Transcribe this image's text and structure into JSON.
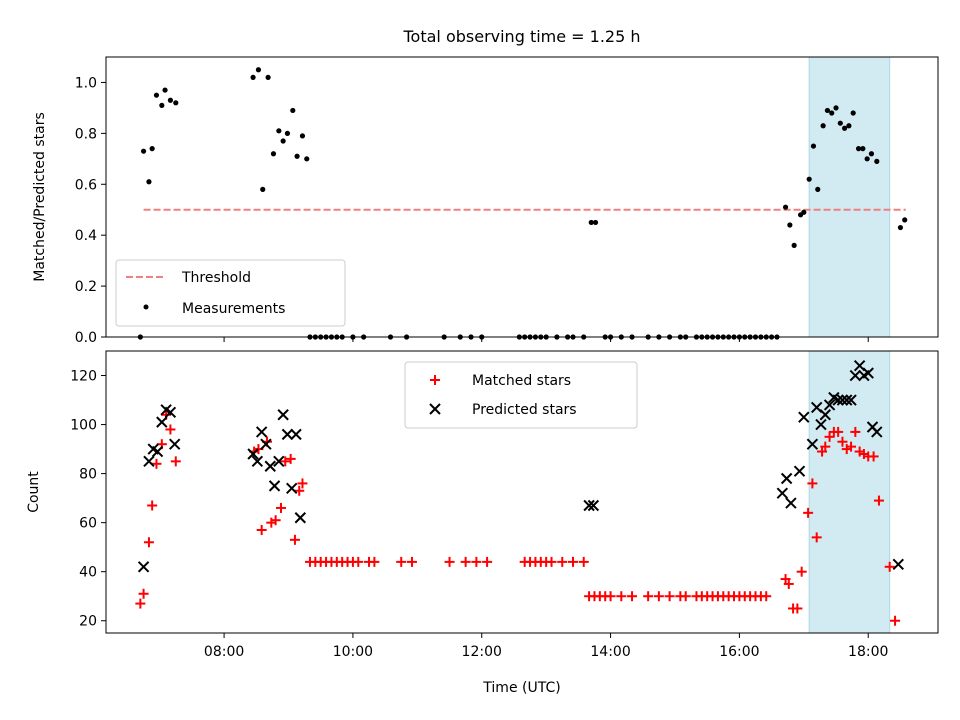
{
  "chart_data": [
    {
      "type": "scatter",
      "title": "Total observing time = 1.25 h",
      "ylabel": "Matched/Predicted stars",
      "xlim": [
        "06:10",
        "19:05"
      ],
      "ylim": [
        0,
        1.1
      ],
      "yticks": [
        "0.0",
        "0.2",
        "0.4",
        "0.6",
        "0.8",
        "1.0"
      ],
      "highlight_span": {
        "from": "17:05",
        "to": "18:20",
        "color": "#add8e6"
      },
      "legend": {
        "position": "lower-left"
      },
      "series": [
        {
          "name": "Threshold",
          "style": "dashed-line",
          "color": "#f08080",
          "points": [
            [
              "06:45",
              0.5
            ],
            [
              "18:35",
              0.5
            ]
          ]
        },
        {
          "name": "Measurements",
          "style": "dots",
          "color": "#000000",
          "points": [
            [
              "06:42",
              0.0
            ],
            [
              "06:45",
              0.73
            ],
            [
              "06:50",
              0.61
            ],
            [
              "06:53",
              0.74
            ],
            [
              "06:57",
              0.95
            ],
            [
              "07:02",
              0.91
            ],
            [
              "07:05",
              0.97
            ],
            [
              "07:10",
              0.93
            ],
            [
              "07:15",
              0.92
            ],
            [
              "08:27",
              1.02
            ],
            [
              "08:32",
              1.05
            ],
            [
              "08:36",
              0.58
            ],
            [
              "08:41",
              1.02
            ],
            [
              "08:46",
              0.72
            ],
            [
              "08:51",
              0.81
            ],
            [
              "08:55",
              0.77
            ],
            [
              "08:59",
              0.8
            ],
            [
              "09:04",
              0.89
            ],
            [
              "09:08",
              0.71
            ],
            [
              "09:13",
              0.79
            ],
            [
              "09:17",
              0.7
            ],
            [
              "09:20",
              0.0
            ],
            [
              "09:25",
              0.0
            ],
            [
              "09:30",
              0.0
            ],
            [
              "09:35",
              0.0
            ],
            [
              "09:40",
              0.0
            ],
            [
              "09:45",
              0.0
            ],
            [
              "09:50",
              0.0
            ],
            [
              "10:00",
              0.0
            ],
            [
              "10:10",
              0.0
            ],
            [
              "10:35",
              0.0
            ],
            [
              "10:50",
              0.0
            ],
            [
              "11:25",
              0.0
            ],
            [
              "11:40",
              0.0
            ],
            [
              "11:50",
              0.0
            ],
            [
              "12:00",
              0.0
            ],
            [
              "12:35",
              0.0
            ],
            [
              "12:40",
              0.0
            ],
            [
              "12:45",
              0.0
            ],
            [
              "12:50",
              0.0
            ],
            [
              "12:55",
              0.0
            ],
            [
              "13:00",
              0.0
            ],
            [
              "13:10",
              0.0
            ],
            [
              "13:20",
              0.0
            ],
            [
              "13:25",
              0.0
            ],
            [
              "13:35",
              0.0
            ],
            [
              "13:42",
              0.45
            ],
            [
              "13:46",
              0.45
            ],
            [
              "13:55",
              0.0
            ],
            [
              "14:00",
              0.0
            ],
            [
              "14:10",
              0.0
            ],
            [
              "14:20",
              0.0
            ],
            [
              "14:35",
              0.0
            ],
            [
              "14:45",
              0.0
            ],
            [
              "14:55",
              0.0
            ],
            [
              "15:05",
              0.0
            ],
            [
              "15:10",
              0.0
            ],
            [
              "15:20",
              0.0
            ],
            [
              "15:25",
              0.0
            ],
            [
              "15:30",
              0.0
            ],
            [
              "15:35",
              0.0
            ],
            [
              "15:40",
              0.0
            ],
            [
              "15:45",
              0.0
            ],
            [
              "15:50",
              0.0
            ],
            [
              "15:55",
              0.0
            ],
            [
              "16:00",
              0.0
            ],
            [
              "16:05",
              0.0
            ],
            [
              "16:10",
              0.0
            ],
            [
              "16:15",
              0.0
            ],
            [
              "16:20",
              0.0
            ],
            [
              "16:25",
              0.0
            ],
            [
              "16:30",
              0.0
            ],
            [
              "16:35",
              0.0
            ],
            [
              "16:43",
              0.51
            ],
            [
              "16:47",
              0.44
            ],
            [
              "16:51",
              0.36
            ],
            [
              "16:57",
              0.48
            ],
            [
              "17:00",
              0.49
            ],
            [
              "17:05",
              0.62
            ],
            [
              "17:09",
              0.75
            ],
            [
              "17:13",
              0.58
            ],
            [
              "17:18",
              0.83
            ],
            [
              "17:22",
              0.89
            ],
            [
              "17:26",
              0.88
            ],
            [
              "17:30",
              0.9
            ],
            [
              "17:34",
              0.84
            ],
            [
              "17:38",
              0.82
            ],
            [
              "17:42",
              0.83
            ],
            [
              "17:46",
              0.88
            ],
            [
              "17:51",
              0.74
            ],
            [
              "17:55",
              0.74
            ],
            [
              "17:59",
              0.7
            ],
            [
              "18:03",
              0.72
            ],
            [
              "18:08",
              0.69
            ],
            [
              "18:30",
              0.43
            ],
            [
              "18:34",
              0.46
            ]
          ]
        }
      ]
    },
    {
      "type": "scatter",
      "xlabel": "Time (UTC)",
      "ylabel": "Count",
      "xlim": [
        "06:10",
        "19:05"
      ],
      "ylim": [
        15,
        130
      ],
      "yticks": [
        "20",
        "40",
        "60",
        "80",
        "100",
        "120"
      ],
      "xticks": [
        "08:00",
        "10:00",
        "12:00",
        "14:00",
        "16:00",
        "18:00"
      ],
      "highlight_span": {
        "from": "17:05",
        "to": "18:20",
        "color": "#add8e6"
      },
      "legend": {
        "position": "upper-center"
      },
      "series": [
        {
          "name": "Matched stars",
          "style": "plus",
          "color": "#ff0000",
          "points": [
            [
              "06:42",
              27
            ],
            [
              "06:45",
              31
            ],
            [
              "06:50",
              52
            ],
            [
              "06:53",
              67
            ],
            [
              "06:57",
              84
            ],
            [
              "07:02",
              92
            ],
            [
              "07:06",
              104
            ],
            [
              "07:10",
              98
            ],
            [
              "07:15",
              85
            ],
            [
              "08:28",
              89
            ],
            [
              "08:32",
              90
            ],
            [
              "08:35",
              57
            ],
            [
              "08:40",
              93
            ],
            [
              "08:44",
              60
            ],
            [
              "08:48",
              61
            ],
            [
              "08:53",
              66
            ],
            [
              "08:57",
              85
            ],
            [
              "09:02",
              86
            ],
            [
              "09:06",
              53
            ],
            [
              "09:10",
              73
            ],
            [
              "09:13",
              76
            ],
            [
              "09:20",
              44
            ],
            [
              "09:25",
              44
            ],
            [
              "09:30",
              44
            ],
            [
              "09:35",
              44
            ],
            [
              "09:40",
              44
            ],
            [
              "09:45",
              44
            ],
            [
              "09:50",
              44
            ],
            [
              "09:55",
              44
            ],
            [
              "10:00",
              44
            ],
            [
              "10:05",
              44
            ],
            [
              "10:15",
              44
            ],
            [
              "10:20",
              44
            ],
            [
              "10:45",
              44
            ],
            [
              "10:55",
              44
            ],
            [
              "11:30",
              44
            ],
            [
              "11:45",
              44
            ],
            [
              "11:55",
              44
            ],
            [
              "12:05",
              44
            ],
            [
              "12:40",
              44
            ],
            [
              "12:45",
              44
            ],
            [
              "12:50",
              44
            ],
            [
              "12:55",
              44
            ],
            [
              "13:00",
              44
            ],
            [
              "13:05",
              44
            ],
            [
              "13:15",
              44
            ],
            [
              "13:25",
              44
            ],
            [
              "13:35",
              44
            ],
            [
              "13:40",
              30
            ],
            [
              "13:45",
              30
            ],
            [
              "13:50",
              30
            ],
            [
              "13:55",
              30
            ],
            [
              "14:00",
              30
            ],
            [
              "14:10",
              30
            ],
            [
              "14:20",
              30
            ],
            [
              "14:35",
              30
            ],
            [
              "14:45",
              30
            ],
            [
              "14:55",
              30
            ],
            [
              "15:05",
              30
            ],
            [
              "15:10",
              30
            ],
            [
              "15:20",
              30
            ],
            [
              "15:25",
              30
            ],
            [
              "15:30",
              30
            ],
            [
              "15:35",
              30
            ],
            [
              "15:40",
              30
            ],
            [
              "15:45",
              30
            ],
            [
              "15:50",
              30
            ],
            [
              "15:55",
              30
            ],
            [
              "16:00",
              30
            ],
            [
              "16:05",
              30
            ],
            [
              "16:10",
              30
            ],
            [
              "16:15",
              30
            ],
            [
              "16:20",
              30
            ],
            [
              "16:25",
              30
            ],
            [
              "16:43",
              37
            ],
            [
              "16:46",
              35
            ],
            [
              "16:50",
              25
            ],
            [
              "16:54",
              25
            ],
            [
              "16:58",
              40
            ],
            [
              "17:04",
              64
            ],
            [
              "17:08",
              76
            ],
            [
              "17:12",
              54
            ],
            [
              "17:17",
              89
            ],
            [
              "17:20",
              91
            ],
            [
              "17:24",
              95
            ],
            [
              "17:28",
              97
            ],
            [
              "17:32",
              97
            ],
            [
              "17:36",
              93
            ],
            [
              "17:40",
              90
            ],
            [
              "17:44",
              91
            ],
            [
              "17:48",
              97
            ],
            [
              "17:52",
              89
            ],
            [
              "17:56",
              88
            ],
            [
              "18:00",
              87
            ],
            [
              "18:05",
              87
            ],
            [
              "18:10",
              69
            ],
            [
              "18:20",
              42
            ],
            [
              "18:25",
              20
            ]
          ]
        },
        {
          "name": "Predicted stars",
          "style": "x",
          "color": "#000000",
          "points": [
            [
              "06:45",
              42
            ],
            [
              "06:50",
              85
            ],
            [
              "06:54",
              90
            ],
            [
              "06:58",
              89
            ],
            [
              "07:02",
              101
            ],
            [
              "07:06",
              106
            ],
            [
              "07:10",
              105
            ],
            [
              "07:14",
              92
            ],
            [
              "08:27",
              88
            ],
            [
              "08:31",
              85
            ],
            [
              "08:35",
              97
            ],
            [
              "08:39",
              92
            ],
            [
              "08:43",
              83
            ],
            [
              "08:47",
              75
            ],
            [
              "08:51",
              85
            ],
            [
              "08:55",
              104
            ],
            [
              "08:59",
              96
            ],
            [
              "09:03",
              74
            ],
            [
              "09:07",
              96
            ],
            [
              "09:11",
              62
            ],
            [
              "13:40",
              67
            ],
            [
              "13:44",
              67
            ],
            [
              "16:40",
              72
            ],
            [
              "16:44",
              78
            ],
            [
              "16:48",
              68
            ],
            [
              "16:56",
              81
            ],
            [
              "17:00",
              103
            ],
            [
              "17:08",
              92
            ],
            [
              "17:12",
              107
            ],
            [
              "17:16",
              100
            ],
            [
              "17:20",
              104
            ],
            [
              "17:24",
              108
            ],
            [
              "17:28",
              111
            ],
            [
              "17:32",
              110
            ],
            [
              "17:36",
              110
            ],
            [
              "17:40",
              110
            ],
            [
              "17:44",
              110
            ],
            [
              "17:48",
              120
            ],
            [
              "17:52",
              124
            ],
            [
              "17:56",
              120
            ],
            [
              "18:00",
              121
            ],
            [
              "18:04",
              99
            ],
            [
              "18:08",
              97
            ],
            [
              "18:28",
              43
            ]
          ]
        }
      ]
    }
  ]
}
